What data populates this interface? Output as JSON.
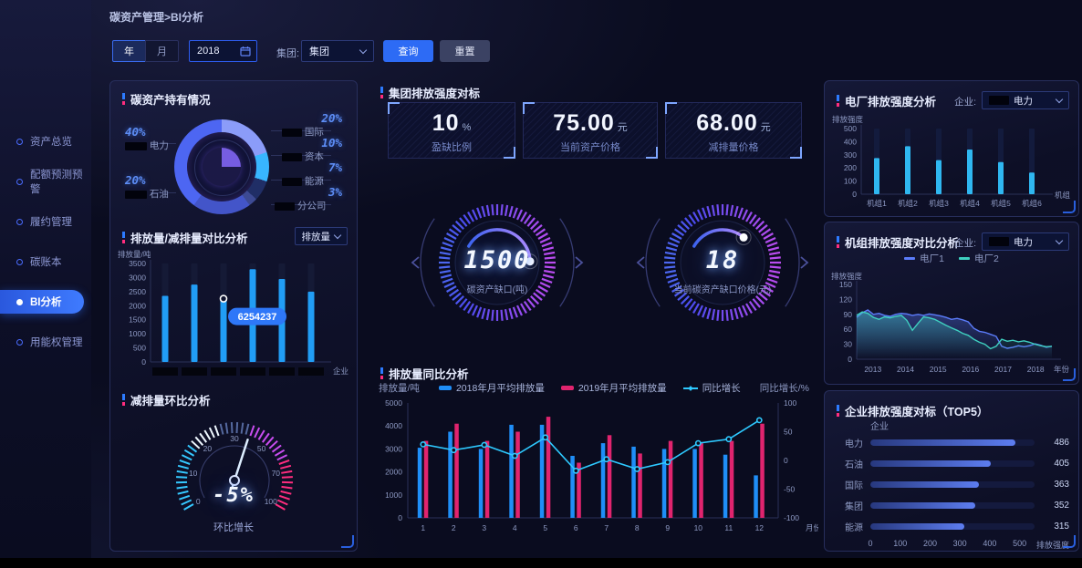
{
  "app": {
    "bg": "#0a0c1f",
    "accent_blue": "#2d6bf5",
    "pink": "#ff2d7e",
    "cyan": "#2ec9ff"
  },
  "breadcrumb": "碳资产管理>BI分析",
  "filterbar": {
    "year_btn": "年",
    "month_btn": "月",
    "date_value": "2018",
    "group_label": "集团:",
    "group_value": "集团",
    "query_btn": "查询",
    "reset_btn": "重置"
  },
  "sidebar": {
    "items": [
      {
        "label": "资产总览",
        "active": false
      },
      {
        "label": "配额预测预警",
        "active": false
      },
      {
        "label": "履约管理",
        "active": false
      },
      {
        "label": "碳账本",
        "active": false
      },
      {
        "label": "BI分析",
        "active": true
      },
      {
        "label": "用能权管理",
        "active": false
      }
    ]
  },
  "panels": {
    "holdings": {
      "title": "碳资产持有情况"
    },
    "emission": {
      "title": "排放量/减排量对比分析",
      "dropdown_value": "排放量"
    },
    "mom": {
      "title": "减排量环比分析"
    },
    "benchmark": {
      "title": "集团排放强度对标",
      "cards": [
        {
          "value": "10",
          "unit": "%",
          "label": "盈缺比例"
        },
        {
          "value": "75.00",
          "unit": "元",
          "label": "当前资产价格"
        },
        {
          "value": "68.00",
          "unit": "元",
          "label": "减排量价格"
        }
      ]
    },
    "yoy": {
      "title": "排放量同比分析"
    },
    "plant": {
      "title": "电厂排放强度分析",
      "filter_label": "企业:",
      "filter_value": "电力"
    },
    "unitcmp": {
      "title": "机组排放强度对比分析",
      "filter_label": "企业:",
      "filter_value": "电力"
    },
    "top5": {
      "title": "企业排放强度对标（TOP5）"
    }
  },
  "chart_data": [
    {
      "id": "holdings_pie",
      "type": "pie",
      "title": "碳资产持有情况",
      "unit": "%",
      "slices": [
        {
          "name": "电力",
          "pct": 40,
          "pct_text": "40%",
          "color": "#4d66f2",
          "label_side": "left"
        },
        {
          "name": "石油",
          "pct": 20,
          "pct_text": "20%",
          "color": "#4355c9",
          "label_side": "left"
        },
        {
          "name": "国际",
          "pct": 20,
          "pct_text": "20%",
          "color": "#8b9cf9",
          "label_side": "right"
        },
        {
          "name": "资本",
          "pct": 10,
          "pct_text": "10%",
          "color": "#38b6ff",
          "label_side": "right"
        },
        {
          "name": "能源",
          "pct": 7,
          "pct_text": "7%",
          "color": "#202e66",
          "label_side": "right"
        },
        {
          "name": "分公司",
          "pct": 3,
          "pct_text": "3%",
          "color": "#3d4a94",
          "label_side": "right"
        }
      ],
      "order_from_top_clockwise": [
        "国际",
        "资本",
        "能源",
        "分公司",
        "石油",
        "电力"
      ],
      "company_names_masked": true
    },
    {
      "id": "emission_vs_reduction",
      "type": "bar",
      "title": "排放量/减排量对比分析",
      "ylabel": "排放量/吨",
      "xlabel": "企业",
      "ylim": [
        0,
        3500
      ],
      "yticks": [
        0,
        500,
        1000,
        1500,
        2000,
        2500,
        3000,
        3500
      ],
      "categories_masked_count": 6,
      "values": [
        2350,
        2750,
        2250,
        3300,
        2950,
        2500
      ],
      "bar_color": "#219df5",
      "tooltip": {
        "index": 2,
        "text": "6254237",
        "marker_value": 2250
      }
    },
    {
      "id": "mom_gauge",
      "type": "gauge",
      "title": "减排量环比分析",
      "value_text": "-5%",
      "caption": "环比增长",
      "scale_labels": [
        0,
        10,
        20,
        30,
        50,
        70,
        100
      ],
      "needle_at_label_index": 3.45
    },
    {
      "id": "carbon_gap_gauge",
      "type": "gauge",
      "value_text": "1500",
      "label": "碳资产缺口(吨)",
      "arc_start_deg": 150,
      "arc_end_deg": 2
    },
    {
      "id": "carbon_gap_price_gauge",
      "type": "gauge",
      "value_text": "18",
      "label": "当前碳资产缺口价格(元)",
      "arc_start_deg": 150,
      "arc_end_deg": 50
    },
    {
      "id": "yoy_combo",
      "type": "bar",
      "subtype": "combo",
      "title": "排放量同比分析",
      "x": [
        1,
        2,
        3,
        4,
        5,
        6,
        7,
        8,
        9,
        10,
        11,
        12
      ],
      "xlabel": "月份",
      "ylabel_left": "排放量/吨",
      "ylabel_right": "同比增长/%",
      "ylim_left": [
        0,
        5000
      ],
      "ylim_right": [
        -100,
        100
      ],
      "yticks_left": [
        0,
        1000,
        2000,
        3000,
        4000,
        5000
      ],
      "yticks_right": [
        -100,
        -50,
        0,
        50,
        100
      ],
      "series": [
        {
          "name": "2018年月平均排放量",
          "type": "bar",
          "color": "#1f8ef7",
          "values": [
            3050,
            3750,
            3000,
            4050,
            4050,
            2700,
            3250,
            3100,
            3000,
            3000,
            2750,
            1850
          ]
        },
        {
          "name": "2019年月平均排放量",
          "type": "bar",
          "color": "#e0246e",
          "values": [
            3350,
            4100,
            3350,
            3750,
            4400,
            2400,
            3600,
            2800,
            3350,
            3250,
            3350,
            4100
          ]
        },
        {
          "name": "同比增长",
          "type": "line",
          "axis": "right",
          "color": "#2ec9ff",
          "values": [
            28,
            18,
            27,
            8,
            40,
            -18,
            2,
            -15,
            -3,
            30,
            37,
            70
          ]
        }
      ]
    },
    {
      "id": "plant_intensity",
      "type": "bar",
      "title": "电厂排放强度分析",
      "ylabel": "排放强度",
      "xlabel": "机组",
      "ylim": [
        0,
        500
      ],
      "yticks": [
        0,
        100,
        200,
        300,
        400,
        500
      ],
      "categories": [
        "机组1",
        "机组2",
        "机组3",
        "机组4",
        "机组5",
        "机组6"
      ],
      "values": [
        275,
        365,
        260,
        340,
        245,
        165
      ],
      "bar_color": "#2fb7f0"
    },
    {
      "id": "unit_intensity_compare",
      "type": "line",
      "title": "机组排放强度对比分析",
      "ylabel": "排放强度",
      "xlabel": "年份",
      "ylim": [
        0,
        150
      ],
      "yticks": [
        0,
        30,
        60,
        90,
        120,
        150
      ],
      "x_years": [
        2013,
        2014,
        2015,
        2016,
        2017,
        2018
      ],
      "series": [
        {
          "name": "电厂1",
          "color": "#5b7cfa",
          "values": [
            84,
            93,
            99,
            90,
            92,
            88,
            86,
            90,
            92,
            91,
            88,
            90,
            88,
            91,
            89,
            87,
            84,
            80,
            82,
            79,
            75,
            62,
            56,
            54,
            50,
            46,
            26,
            22,
            24,
            27,
            25,
            27,
            31,
            28,
            24,
            26
          ]
        },
        {
          "name": "电厂2",
          "color": "#3fd0c0",
          "values": [
            88,
            95,
            92,
            84,
            80,
            85,
            83,
            86,
            88,
            78,
            58,
            72,
            85,
            83,
            80,
            74,
            68,
            63,
            58,
            52,
            48,
            40,
            34,
            30,
            21,
            26,
            40,
            36,
            38,
            35,
            37,
            34,
            30,
            27,
            25,
            26
          ]
        }
      ]
    },
    {
      "id": "top5_intensity",
      "type": "bar",
      "orientation": "horizontal",
      "title": "企业排放强度对标（TOP5）",
      "col_header": "企业",
      "xlabel": "排放强度",
      "xlim": [
        0,
        550
      ],
      "xticks": [
        0,
        100,
        200,
        300,
        400,
        500
      ],
      "categories": [
        "电力",
        "石油",
        "国际",
        "集团",
        "能源"
      ],
      "values": [
        486,
        405,
        363,
        352,
        315
      ]
    }
  ]
}
